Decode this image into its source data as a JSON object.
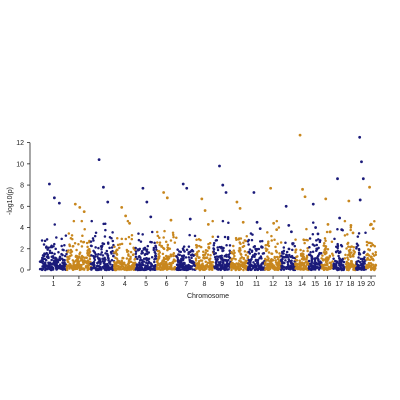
{
  "chart_data": {
    "type": "scatter",
    "subtype": "manhattan",
    "xlabel": "Chromosome",
    "ylabel": "-log10(p)",
    "ylim": [
      0,
      13
    ],
    "yticks": [
      0,
      2,
      4,
      6,
      8,
      10,
      12
    ],
    "grid": false,
    "legend": "none",
    "colors": {
      "odd": "#1b1b7a",
      "even": "#c8871e",
      "axis": "#222222"
    },
    "chromosomes": [
      {
        "label": "1",
        "color": "odd",
        "n_points": 190,
        "top_points": [
          8.1,
          6.8,
          6.3
        ]
      },
      {
        "label": "2",
        "color": "even",
        "n_points": 170,
        "top_points": [
          6.2,
          5.9,
          5.5
        ]
      },
      {
        "label": "3",
        "color": "odd",
        "n_points": 165,
        "top_points": [
          10.4,
          7.8,
          6.4
        ]
      },
      {
        "label": "4",
        "color": "even",
        "n_points": 150,
        "top_points": [
          5.9,
          5.1,
          4.4
        ]
      },
      {
        "label": "5",
        "color": "odd",
        "n_points": 150,
        "top_points": [
          7.7,
          6.4,
          5.0
        ]
      },
      {
        "label": "6",
        "color": "even",
        "n_points": 140,
        "top_points": [
          7.3,
          6.8,
          4.7
        ]
      },
      {
        "label": "7",
        "color": "odd",
        "n_points": 135,
        "top_points": [
          8.1,
          7.7,
          4.8
        ]
      },
      {
        "label": "8",
        "color": "even",
        "n_points": 125,
        "top_points": [
          6.7,
          5.6,
          4.3
        ]
      },
      {
        "label": "9",
        "color": "odd",
        "n_points": 125,
        "top_points": [
          9.8,
          8.0,
          7.3
        ]
      },
      {
        "label": "10",
        "color": "even",
        "n_points": 120,
        "top_points": [
          6.4,
          5.8,
          4.5
        ]
      },
      {
        "label": "11",
        "color": "odd",
        "n_points": 120,
        "top_points": [
          7.3,
          4.5,
          3.9
        ]
      },
      {
        "label": "12",
        "color": "even",
        "n_points": 115,
        "top_points": [
          7.7,
          4.4,
          3.8
        ]
      },
      {
        "label": "13",
        "color": "odd",
        "n_points": 100,
        "top_points": [
          6.0,
          4.2,
          3.6
        ]
      },
      {
        "label": "14",
        "color": "even",
        "n_points": 95,
        "top_points": [
          12.7,
          7.6,
          6.9
        ]
      },
      {
        "label": "15",
        "color": "odd",
        "n_points": 90,
        "top_points": [
          6.2,
          4.0,
          3.4
        ]
      },
      {
        "label": "16",
        "color": "even",
        "n_points": 85,
        "top_points": [
          6.7,
          4.3,
          3.6
        ]
      },
      {
        "label": "17",
        "color": "odd",
        "n_points": 80,
        "top_points": [
          8.6,
          4.9,
          3.8
        ]
      },
      {
        "label": "18",
        "color": "even",
        "n_points": 80,
        "top_points": [
          6.5,
          4.2,
          3.5
        ]
      },
      {
        "label": "19",
        "color": "odd",
        "n_points": 70,
        "top_points": [
          12.5,
          10.2,
          8.6,
          6.6
        ]
      },
      {
        "label": "20",
        "color": "even",
        "n_points": 70,
        "top_points": [
          7.8,
          4.3,
          3.9
        ]
      }
    ]
  }
}
